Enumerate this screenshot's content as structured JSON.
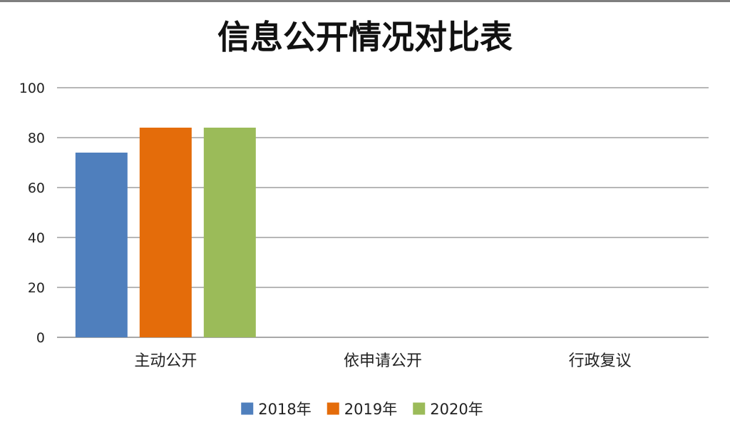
{
  "chart_data": {
    "type": "bar",
    "title": "信息公开情况对比表",
    "categories": [
      "主动公开",
      "依申请公开",
      "行政复议"
    ],
    "series": [
      {
        "name": "2018年",
        "color": "#4f7fbd",
        "values": [
          74,
          0,
          0
        ]
      },
      {
        "name": "2019年",
        "color": "#e46c0a",
        "values": [
          84,
          0,
          0
        ]
      },
      {
        "name": "2020年",
        "color": "#9bbb59",
        "values": [
          84,
          0,
          0
        ]
      }
    ],
    "ylim": [
      0,
      100
    ],
    "yticks": [
      0,
      20,
      40,
      60,
      80,
      100
    ],
    "grid": true,
    "legend": "bottom"
  }
}
